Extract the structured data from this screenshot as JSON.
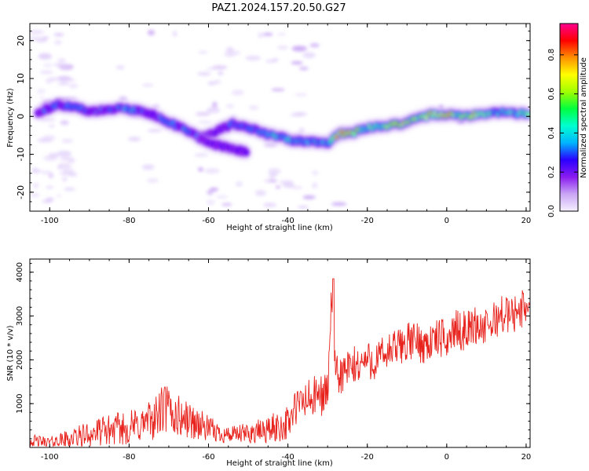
{
  "title": "PAZ1.2024.157.20.50.G27",
  "chart_data": [
    {
      "type": "heatmap",
      "xlabel": "Height of straight line (km)",
      "ylabel": "Frequency (Hz)",
      "xlim": [
        -105,
        21
      ],
      "ylim": [
        -25,
        24.5
      ],
      "x_ticks": [
        -100,
        -80,
        -60,
        -40,
        -20,
        0,
        20
      ],
      "y_ticks": [
        -20,
        -10,
        0,
        10,
        20
      ],
      "colorbar": {
        "label": "Normalized spectral amplitude",
        "range": [
          0,
          0.96
        ],
        "ticks": [
          0.0,
          0.2,
          0.4,
          0.6,
          0.8
        ],
        "colormap": [
          "#f5f0ff",
          "#c9a6f5",
          "#8a1cf0",
          "#2b00ff",
          "#00b4ff",
          "#00ffd0",
          "#00ff40",
          "#a0ff00",
          "#ffff00",
          "#ff9000",
          "#ff0000",
          "#ff0090"
        ]
      },
      "ridge": {
        "x": [
          -103,
          -98,
          -94,
          -90,
          -86,
          -82,
          -78,
          -74,
          -70,
          -66,
          -62,
          -58,
          -54,
          -50,
          -46,
          -42,
          -38,
          -34,
          -30,
          -27,
          -24,
          -20,
          -16,
          -12,
          -8,
          -4,
          0,
          4,
          8,
          12,
          16,
          21
        ],
        "freq": [
          1.0,
          3.0,
          2.5,
          1.5,
          1.5,
          2.5,
          1.5,
          0.5,
          -1.5,
          -3.5,
          -5.5,
          -4.0,
          -2.0,
          -3.0,
          -4.5,
          -5.5,
          -6.5,
          -6.5,
          -7.0,
          -4.5,
          -4.5,
          -3.0,
          -2.5,
          -2.0,
          -1.0,
          0.5,
          0.5,
          0.0,
          0.5,
          1.0,
          1.0,
          0.5
        ],
        "amplitude": [
          0.25,
          0.35,
          0.35,
          0.3,
          0.3,
          0.4,
          0.35,
          0.3,
          0.35,
          0.35,
          0.3,
          0.25,
          0.3,
          0.3,
          0.4,
          0.45,
          0.4,
          0.4,
          0.45,
          0.85,
          0.85,
          0.5,
          0.55,
          0.85,
          0.6,
          0.7,
          0.85,
          0.6,
          0.8,
          0.45,
          0.5,
          0.6
        ]
      },
      "branch": {
        "x": [
          -62,
          -58,
          -54,
          -50
        ],
        "freq": [
          -6.0,
          -7.5,
          -8.5,
          -9.5
        ]
      }
    },
    {
      "type": "line",
      "xlabel": "Height of straight line (km)",
      "ylabel": "SNR (10 * v/v)",
      "xlim": [
        -105,
        21
      ],
      "ylim": [
        0,
        4300
      ],
      "x_ticks": [
        -100,
        -80,
        -60,
        -40,
        -20,
        0,
        20
      ],
      "y_ticks": [
        1000,
        2000,
        3000,
        4000
      ],
      "series": [
        {
          "color": "#e8221c",
          "x": [
            -105,
            -100,
            -95,
            -90,
            -85,
            -80,
            -76,
            -73,
            -71,
            -69,
            -66,
            -63,
            -60,
            -57,
            -54,
            -50,
            -46,
            -42,
            -40,
            -38,
            -36,
            -34,
            -32,
            -30,
            -29,
            -28,
            -26,
            -24,
            -22,
            -20,
            -18,
            -16,
            -14,
            -12,
            -10,
            -8,
            -6,
            -4,
            -2,
            0,
            2,
            4,
            6,
            8,
            10,
            12,
            14,
            16,
            18,
            21
          ],
          "y": [
            150,
            120,
            200,
            300,
            400,
            450,
            550,
            700,
            900,
            750,
            650,
            550,
            420,
            320,
            280,
            320,
            380,
            480,
            550,
            900,
            1050,
            1100,
            1200,
            1250,
            3500,
            1600,
            1700,
            1800,
            1900,
            2000,
            1950,
            2100,
            2200,
            2300,
            2400,
            2450,
            2350,
            2400,
            2500,
            2450,
            2700,
            2650,
            2750,
            2800,
            2700,
            2900,
            3050,
            3000,
            3100,
            3300
          ],
          "noise": [
            150,
            120,
            220,
            300,
            350,
            400,
            450,
            500,
            650,
            550,
            450,
            400,
            300,
            220,
            200,
            250,
            300,
            380,
            400,
            450,
            500,
            500,
            500,
            500,
            300,
            500,
            500,
            500,
            450,
            450,
            450,
            450,
            450,
            450,
            450,
            450,
            450,
            450,
            450,
            450,
            450,
            450,
            450,
            450,
            450,
            450,
            450,
            450,
            450,
            450
          ]
        }
      ]
    }
  ]
}
